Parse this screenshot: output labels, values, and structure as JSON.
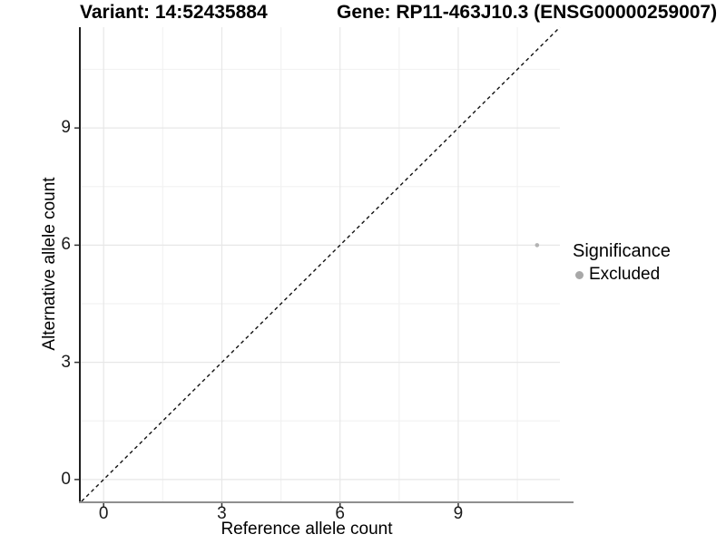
{
  "header": {
    "variant_title": "Variant: 14:52435884",
    "gene_title": "Gene: RP11-463J10.3 (ENSG00000259007)"
  },
  "chart_data": {
    "type": "scatter",
    "xlabel": "Reference allele count",
    "ylabel": "Alternative allele count",
    "x_ticks": [
      0,
      3,
      6,
      9
    ],
    "y_ticks": [
      0,
      3,
      6,
      9
    ],
    "x_minor_ticks": [
      1.5,
      4.5,
      7.5,
      10.5
    ],
    "y_minor_ticks": [
      1.5,
      4.5,
      7.5,
      10.5
    ],
    "xlim": [
      -0.58,
      11.58
    ],
    "ylim": [
      -0.56,
      11.58
    ],
    "grid": "major+minor",
    "points": [
      {
        "x": 11,
        "y": 6,
        "significance": "Excluded",
        "color": "#b3b3b3",
        "radius_px": 2.3
      }
    ],
    "reference_line": {
      "equation": "y = x",
      "style": "dashed",
      "color": "#111111"
    },
    "legend": {
      "title": "Significance",
      "position": "right",
      "items": [
        {
          "label": "Excluded",
          "color": "#a8a8a8"
        }
      ]
    }
  },
  "colors": {
    "background": "#ffffff",
    "grid_major": "#e7e7e7",
    "grid_minor": "#f2f2f2",
    "axis_line_left": "#1f1f1f",
    "axis_line_bottom": "#8f8f8f",
    "tick_mark": "#333333",
    "text": "#000000"
  }
}
